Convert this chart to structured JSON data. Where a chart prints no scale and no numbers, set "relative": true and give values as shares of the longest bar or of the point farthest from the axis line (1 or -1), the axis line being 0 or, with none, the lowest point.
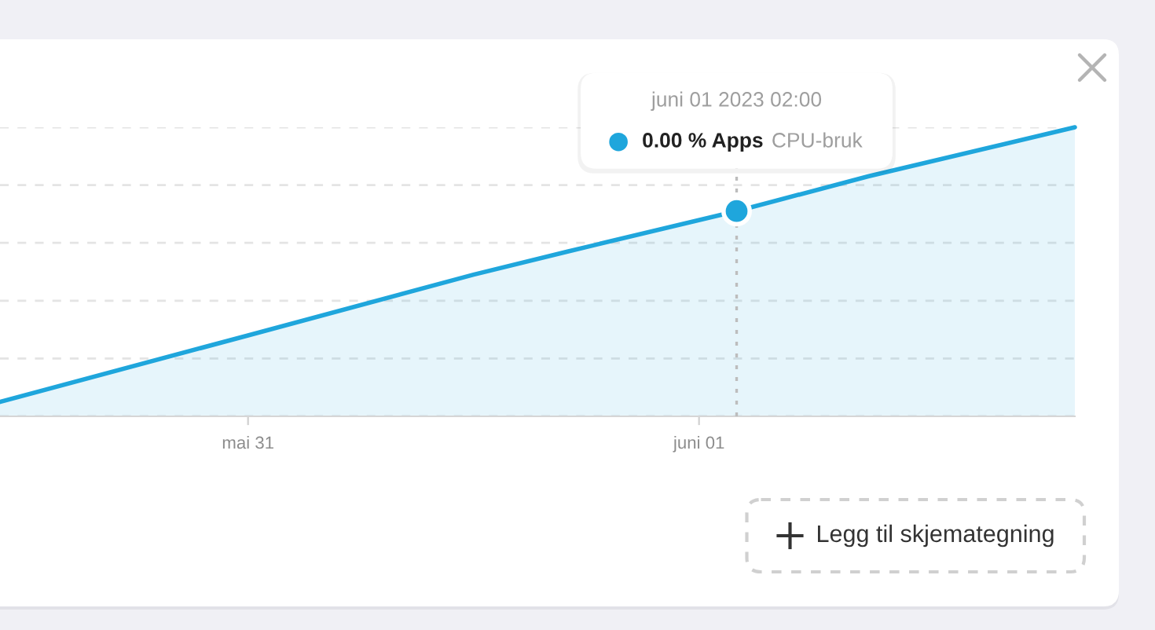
{
  "chart_data": {
    "type": "area",
    "relative": true,
    "x": [
      "2023-05-30T10:48",
      "2023-05-31T00:00",
      "2023-05-31T12:00",
      "2023-05-31T17:00",
      "2023-06-01T02:00",
      "2023-06-01T09:00",
      "2023-06-01T20:00"
    ],
    "series": [
      {
        "name": "CPU-bruk",
        "color": "#1fa6dc",
        "values": [
          0.05,
          0.28,
          0.49,
          0.57,
          0.71,
          0.83,
          1.0
        ]
      }
    ],
    "xlim": [
      "2023-05-30T10:48",
      "2023-06-01T20:00"
    ],
    "xticks": [
      {
        "value": "2023-05-31",
        "label": "mai 31"
      },
      {
        "value": "2023-06-01",
        "label": "juni 01"
      }
    ],
    "grid": "y",
    "tick_labels": "x",
    "ref_lines": [
      {
        "axis": "x",
        "value": "2023-06-01T02:00",
        "color": "#bdbdbd",
        "line_style": "dotted"
      }
    ],
    "annotations": [
      "juni 01 2023 02:00",
      "0.00 % Apps",
      "Legg til skjemategning"
    ]
  }
}
